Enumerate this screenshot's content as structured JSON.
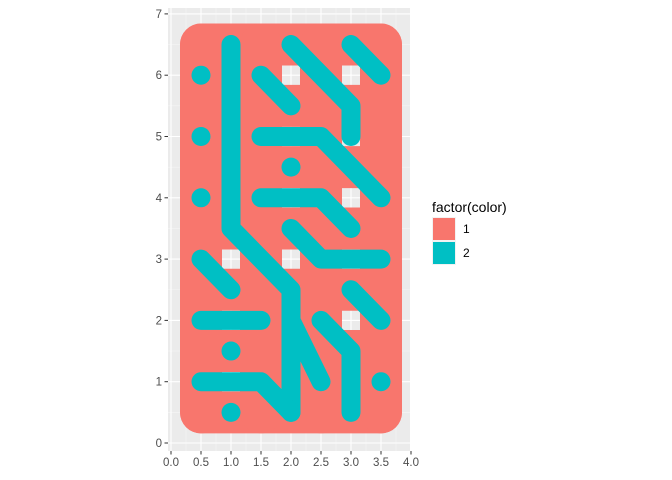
{
  "chart_data": {
    "type": "path",
    "title": "",
    "xlabel": "",
    "ylabel": "",
    "xlim": [
      0,
      4
    ],
    "ylim": [
      0,
      7
    ],
    "x_ticks": [
      "0.0",
      "0.5",
      "1.0",
      "1.5",
      "2.0",
      "2.5",
      "3.0",
      "3.5",
      "4.0"
    ],
    "y_ticks": [
      "0",
      "1",
      "2",
      "3",
      "4",
      "5",
      "6",
      "7"
    ],
    "grid": true,
    "legend": {
      "title": "factor(color)",
      "position": "right",
      "entries": [
        {
          "label": "1",
          "color": "#F8766D"
        },
        {
          "label": "2",
          "color": "#00BFC4"
        }
      ]
    },
    "series": [
      {
        "color_key": "1",
        "paths": [
          [
            [
              0.5,
              6.5
            ],
            [
              1.5,
              6.5
            ]
          ],
          [
            [
              1.5,
              6.5
            ],
            [
              2.5,
              6.5
            ]
          ],
          [
            [
              2.5,
              6.5
            ],
            [
              3.5,
              6.5
            ]
          ],
          [
            [
              0.5,
              5.5
            ],
            [
              3.5,
              5.5
            ]
          ],
          [
            [
              0.5,
              4.5
            ],
            [
              3.5,
              4.5
            ]
          ],
          [
            [
              0.5,
              3.5
            ],
            [
              3.5,
              3.5
            ]
          ],
          [
            [
              0.5,
              2.5
            ],
            [
              3.5,
              2.5
            ]
          ],
          [
            [
              0.5,
              1.5
            ],
            [
              3.5,
              1.5
            ]
          ],
          [
            [
              0.5,
              0.5
            ],
            [
              3.5,
              0.5
            ]
          ],
          [
            [
              0.5,
              6.5
            ],
            [
              0.5,
              0.5
            ]
          ],
          [
            [
              3.5,
              6.5
            ],
            [
              3.5,
              0.5
            ]
          ],
          [
            [
              1.5,
              6.5
            ],
            [
              1.5,
              0.5
            ]
          ],
          [
            [
              2.5,
              6.5
            ],
            [
              2.5,
              0.5
            ]
          ]
        ]
      },
      {
        "color_key": "2",
        "paths": [
          [
            [
              1.0,
              6.5
            ],
            [
              1.0,
              3.5
            ],
            [
              1.5,
              3.0
            ],
            [
              2.0,
              2.5
            ],
            [
              2.0,
              0.5
            ]
          ],
          [
            [
              2.0,
              6.5
            ],
            [
              2.5,
              6.0
            ],
            [
              3.0,
              5.5
            ],
            [
              3.0,
              5.0
            ]
          ],
          [
            [
              3.0,
              6.5
            ],
            [
              3.5,
              6.0
            ]
          ],
          [
            [
              0.5,
              6.0
            ],
            [
              0.5,
              6.0
            ]
          ],
          [
            [
              1.5,
              6.0
            ],
            [
              2.0,
              5.5
            ]
          ],
          [
            [
              0.5,
              5.0
            ],
            [
              0.5,
              5.0
            ]
          ],
          [
            [
              1.5,
              5.0
            ],
            [
              2.5,
              5.0
            ],
            [
              3.0,
              4.5
            ],
            [
              3.5,
              4.0
            ]
          ],
          [
            [
              2.0,
              4.5
            ],
            [
              2.0,
              4.5
            ]
          ],
          [
            [
              0.5,
              4.0
            ],
            [
              0.5,
              4.0
            ]
          ],
          [
            [
              1.5,
              4.0
            ],
            [
              2.5,
              4.0
            ],
            [
              3.0,
              3.5
            ]
          ],
          [
            [
              2.0,
              3.5
            ],
            [
              2.5,
              3.0
            ],
            [
              3.5,
              3.0
            ]
          ],
          [
            [
              0.5,
              3.0
            ],
            [
              1.0,
              2.5
            ]
          ],
          [
            [
              3.0,
              2.5
            ],
            [
              3.5,
              2.0
            ]
          ],
          [
            [
              0.5,
              2.0
            ],
            [
              1.5,
              2.0
            ]
          ],
          [
            [
              2.5,
              2.0
            ],
            [
              3.0,
              1.5
            ],
            [
              3.0,
              0.5
            ]
          ],
          [
            [
              1.0,
              1.5
            ],
            [
              1.0,
              1.5
            ]
          ],
          [
            [
              2.0,
              2.0
            ],
            [
              2.5,
              1.0
            ]
          ],
          [
            [
              0.5,
              1.0
            ],
            [
              1.5,
              1.0
            ],
            [
              2.0,
              0.5
            ]
          ],
          [
            [
              3.5,
              1.0
            ],
            [
              3.5,
              1.0
            ]
          ],
          [
            [
              1.0,
              0.5
            ],
            [
              1.0,
              0.5
            ]
          ]
        ]
      }
    ]
  }
}
